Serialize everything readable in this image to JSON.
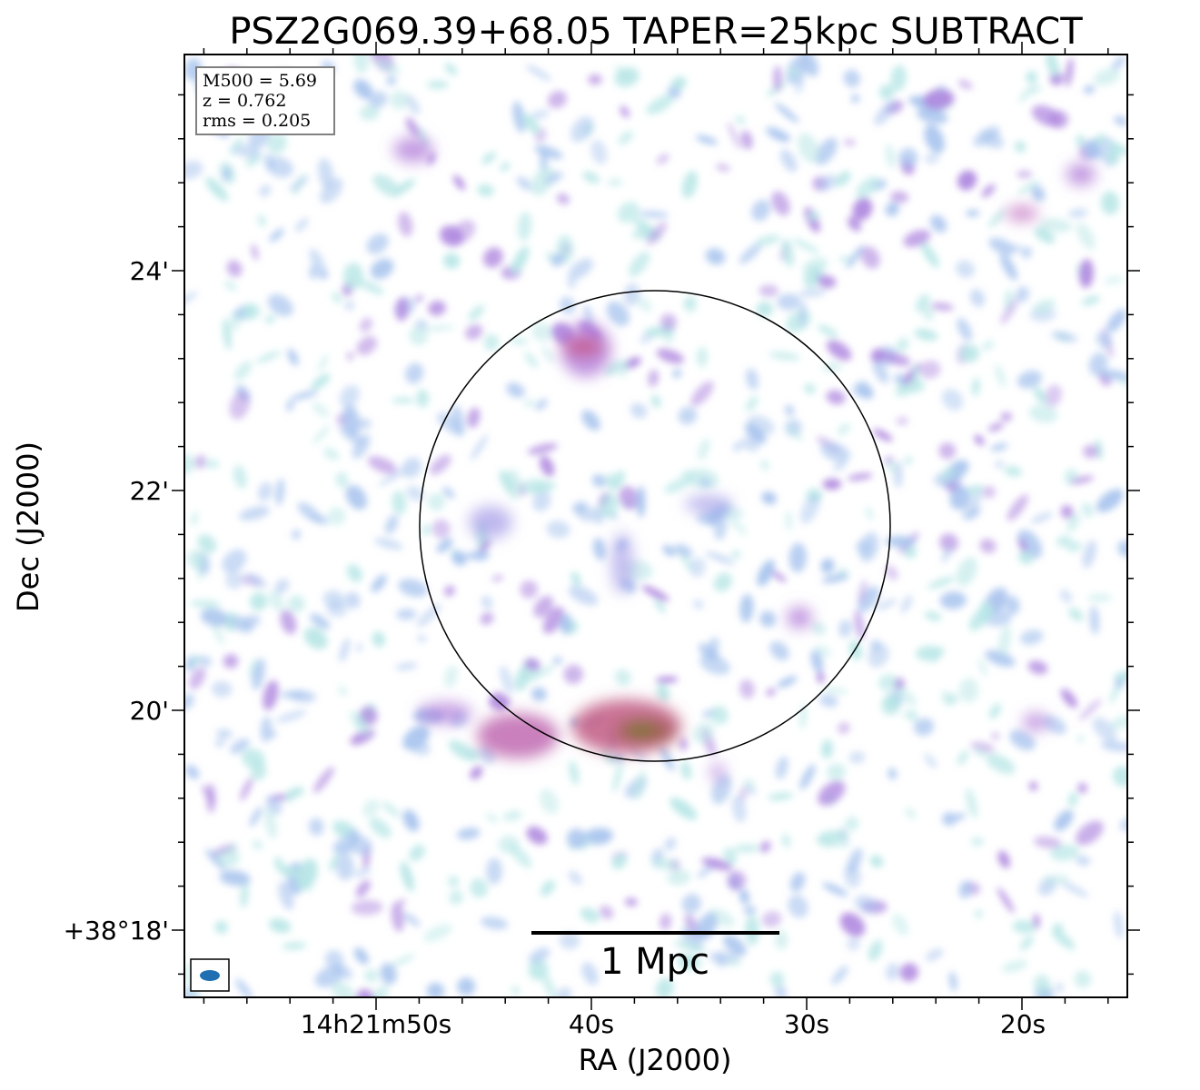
{
  "title": "PSZ2G069.39+68.05 TAPER=25kpc SUBTRACT",
  "xlabel": "RA (J2000)",
  "ylabel": "Dec (J2000)",
  "x_ticks": [
    "14h21m50s",
    "40s",
    "30s",
    "20s"
  ],
  "y_ticks": [
    "24'",
    "22'",
    "20'",
    "+38°18'"
  ],
  "info": {
    "m500": "M500 = 5.69",
    "z": "z = 0.762",
    "rms": "rms = 0.205"
  },
  "scalebar": {
    "label": "1 Mpc"
  },
  "colors": {
    "background": "#ffffff",
    "noise_light": "#b8e6e6",
    "noise_blue": "#a8c4ee",
    "noise_violet": "#b08ae0",
    "emission_pink": "#d070b0",
    "emission_red": "#c86070",
    "emission_core": "#7a7a30",
    "beam": "#1f6fb2"
  }
}
